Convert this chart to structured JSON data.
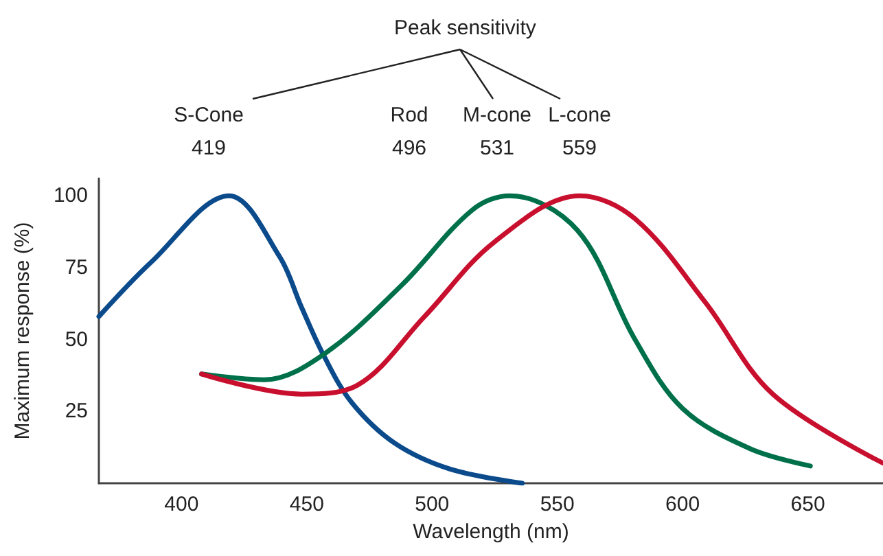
{
  "chart_data": {
    "type": "line",
    "title": "Peak sensitivity",
    "xlabel": "Wavelength (nm)",
    "ylabel": "Maximum response (%)",
    "annotations": [
      "S-Cone\n419",
      "Rod\n496",
      "M-cone\n531",
      "L-cone\n559"
    ],
    "series": [
      {
        "color": "#0b4a8b",
        "x": [
          367,
          388,
          419,
          439,
          448,
          457,
          468,
          485,
          507,
          536
        ],
        "values": [
          58,
          77,
          100,
          79,
          61,
          44,
          28,
          14,
          5,
          0
        ]
      },
      {
        "color": "#00704a",
        "x": [
          408,
          433,
          457,
          488,
          516,
          531,
          558,
          581,
          600,
          627,
          651
        ],
        "values": [
          38,
          36,
          45,
          69,
          95,
          100,
          88,
          50,
          26,
          12,
          6
        ]
      },
      {
        "color": "#c8102e",
        "x": [
          408,
          448,
          470,
          497,
          525,
          559,
          581,
          609,
          636,
          680
        ],
        "values": [
          38,
          31,
          34,
          58,
          84,
          100,
          92,
          63,
          31,
          7
        ]
      }
    ],
    "xlim": [
      367,
      680
    ],
    "xticks": [
      400,
      450,
      500,
      550,
      600,
      650
    ],
    "ylim": [
      0,
      106
    ],
    "yticks": [
      25,
      50,
      75,
      100
    ],
    "marker": "none",
    "line_style": "solid"
  }
}
